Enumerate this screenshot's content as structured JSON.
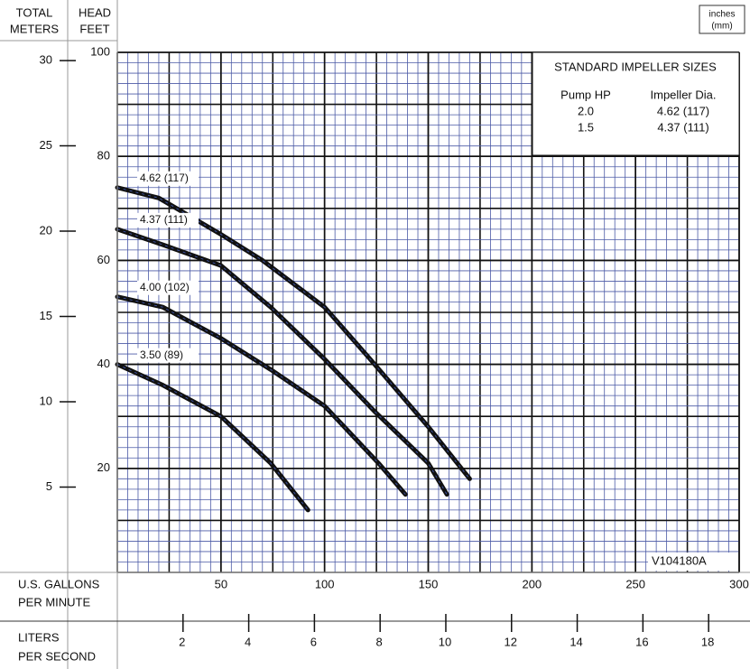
{
  "chart_data": {
    "type": "line",
    "xlabel": [
      "U.S. GALLONS",
      "PER MINUTE"
    ],
    "x2label": [
      "LITERS",
      "PER SECOND"
    ],
    "ylabel": [
      "HEAD",
      "FEET"
    ],
    "y2label": [
      "TOTAL",
      "METERS"
    ],
    "xlim": [
      0,
      300
    ],
    "xticks": [
      50,
      100,
      150,
      200,
      250,
      300
    ],
    "x2lim": [
      0,
      18.93
    ],
    "x2ticks": [
      2,
      4,
      6,
      8,
      10,
      12,
      14,
      16,
      18
    ],
    "ylim": [
      0,
      100
    ],
    "yticks": [
      20,
      40,
      60,
      80,
      100
    ],
    "y2lim": [
      0,
      30.48
    ],
    "y2ticks": [
      5,
      10,
      15,
      20,
      25,
      30
    ],
    "grid": true,
    "series": [
      {
        "name": "4.62 (117)",
        "color": "#111111",
        "x": [
          0,
          20,
          50,
          70,
          100,
          122,
          150,
          170
        ],
        "values": [
          74,
          72,
          65,
          60,
          51,
          41,
          28,
          18
        ]
      },
      {
        "name": "4.37 (111)",
        "color": "#111111",
        "x": [
          0,
          22,
          50,
          74,
          100,
          124,
          150,
          159
        ],
        "values": [
          66,
          63,
          59,
          51,
          41,
          31,
          21,
          15
        ]
      },
      {
        "name": "4.00 (102)",
        "color": "#111111",
        "x": [
          0,
          22,
          50,
          74,
          100,
          126,
          139
        ],
        "values": [
          53,
          51,
          45,
          39,
          32,
          21,
          15
        ]
      },
      {
        "name": "3.50 (89)",
        "color": "#111111",
        "x": [
          0,
          22,
          50,
          74,
          92
        ],
        "values": [
          40,
          36,
          30,
          21,
          12
        ]
      }
    ],
    "unit_note": [
      "inches",
      "(mm)"
    ],
    "code": "V104180A",
    "impeller_table": {
      "title": "STANDARD IMPELLER SIZES",
      "headers": [
        "Pump HP",
        "Impeller Dia."
      ],
      "rows": [
        [
          "2.0",
          "4.62 (117)"
        ],
        [
          "1.5",
          "4.37 (111)"
        ]
      ]
    }
  }
}
